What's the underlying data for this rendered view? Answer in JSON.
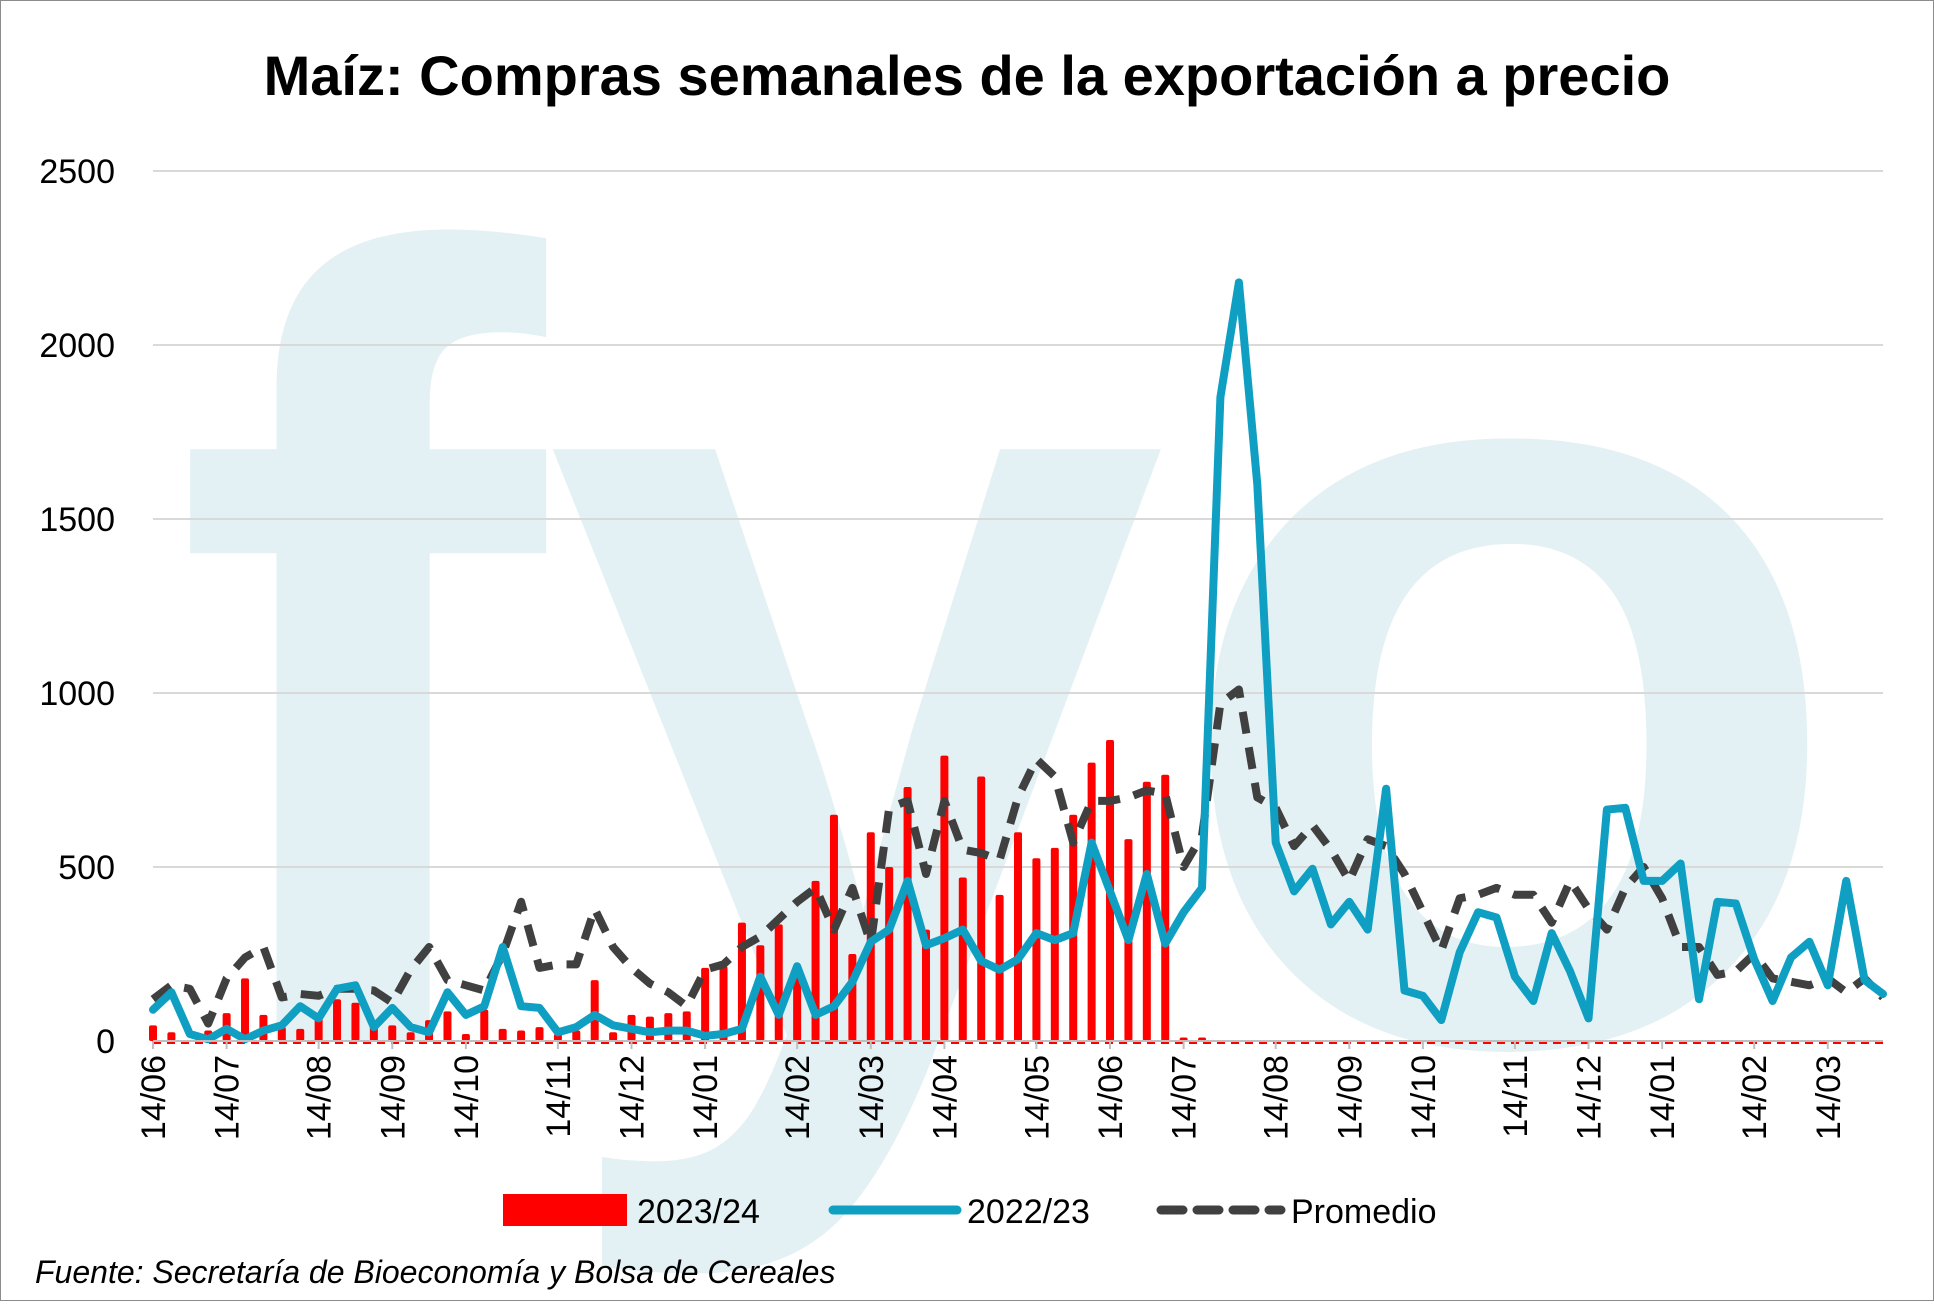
{
  "chart_data": {
    "type": "bar+line",
    "title": "Maíz: Compras semanales de la exportación a precio",
    "ylim": [
      0,
      2500
    ],
    "yticks": [
      0,
      500,
      1000,
      1500,
      2000,
      2500
    ],
    "x_tick_labels": [
      "14/06",
      "14/07",
      "14/08",
      "14/09",
      "14/10",
      "14/11",
      "14/12",
      "14/01",
      "14/02",
      "14/03",
      "14/04",
      "14/05",
      "14/06",
      "14/07",
      "14/08",
      "14/09",
      "14/10",
      "14/11",
      "14/12",
      "14/01",
      "14/02",
      "14/03"
    ],
    "legend": [
      "2023/24",
      "2022/23",
      "Promedio"
    ],
    "watermark": "fyo",
    "series": [
      {
        "name": "2023/24",
        "type": "bar",
        "color": "#ff0000",
        "values": [
          45,
          25,
          0,
          30,
          80,
          180,
          75,
          40,
          35,
          80,
          120,
          110,
          50,
          45,
          25,
          60,
          85,
          20,
          90,
          35,
          30,
          40,
          20,
          30,
          175,
          25,
          75,
          70,
          80,
          85,
          210,
          215,
          340,
          275,
          335,
          200,
          460,
          650,
          250,
          600,
          500,
          730,
          320,
          820,
          470,
          760,
          420,
          600,
          525,
          555,
          650,
          800,
          865,
          580,
          745,
          765,
          10,
          10
        ]
      },
      {
        "name": "2022/23",
        "type": "line",
        "color": "#0f9fc2",
        "values": [
          90,
          140,
          20,
          5,
          35,
          5,
          30,
          45,
          100,
          65,
          150,
          160,
          40,
          95,
          40,
          25,
          140,
          75,
          100,
          270,
          100,
          95,
          25,
          40,
          75,
          45,
          35,
          25,
          30,
          30,
          15,
          20,
          35,
          185,
          75,
          215,
          75,
          100,
          170,
          285,
          320,
          460,
          275,
          295,
          320,
          230,
          205,
          235,
          310,
          290,
          310,
          570,
          430,
          290,
          480,
          280,
          370,
          440,
          1850,
          2180,
          1600,
          570,
          430,
          495,
          335,
          400,
          320,
          725,
          145,
          130,
          60,
          255,
          370,
          355,
          185,
          115,
          310,
          200,
          65,
          665,
          670,
          460,
          460,
          510,
          120,
          400,
          395,
          235,
          115,
          240,
          285,
          160,
          460,
          175,
          135
        ]
      },
      {
        "name": "Promedio",
        "type": "line",
        "dashed": true,
        "color": "#404040",
        "values": [
          120,
          160,
          150,
          50,
          180,
          240,
          270,
          125,
          135,
          130,
          150,
          150,
          145,
          110,
          205,
          270,
          175,
          160,
          145,
          250,
          400,
          210,
          220,
          220,
          380,
          270,
          210,
          165,
          140,
          100,
          205,
          220,
          270,
          300,
          350,
          400,
          440,
          320,
          440,
          280,
          670,
          690,
          480,
          690,
          550,
          540,
          520,
          700,
          810,
          760,
          570,
          690,
          690,
          700,
          720,
          710,
          500,
          590,
          970,
          1010,
          700,
          670,
          560,
          620,
          550,
          460,
          580,
          560,
          480,
          370,
          260,
          410,
          420,
          440,
          420,
          420,
          340,
          460,
          380,
          320,
          440,
          500,
          410,
          270,
          270,
          190,
          200,
          250,
          180,
          170,
          160,
          180,
          140,
          180,
          125
        ]
      }
    ]
  },
  "source_text": "Fuente: Secretaría de Bioeconomía y Bolsa de Cereales"
}
